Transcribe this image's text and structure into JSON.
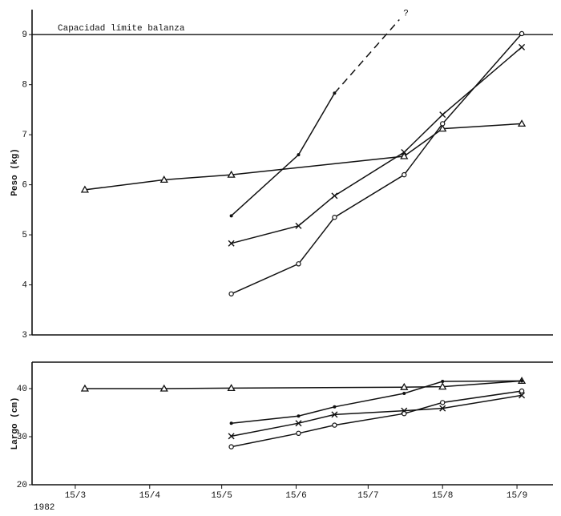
{
  "chart_data": [
    {
      "type": "line",
      "y_label": "Peso (kg)",
      "xlim": [
        "1982-02-25",
        "1982-09-30"
      ],
      "ylim": [
        3,
        9.5
      ],
      "yticks": [
        3,
        4,
        5,
        6,
        7,
        8,
        9
      ],
      "refline": {
        "value": 9,
        "label": "Capacidad límite balanza"
      },
      "series": [
        {
          "marker": "triangle",
          "color": "#111111",
          "x": [
            "1982-03-19",
            "1982-04-21",
            "1982-05-19",
            "1982-07-30",
            "1982-08-15",
            "1982-09-17"
          ],
          "values": [
            5.9,
            6.1,
            6.2,
            6.57,
            7.12,
            7.22
          ]
        },
        {
          "marker": "dot",
          "color": "#111111",
          "x": [
            "1982-05-19",
            "1982-06-16",
            "1982-07-01"
          ],
          "values": [
            5.38,
            6.6,
            7.83
          ]
        },
        {
          "marker": "none",
          "dash": true,
          "color": "#111111",
          "annotation": "?",
          "x": [
            "1982-07-01",
            "1982-07-28"
          ],
          "values": [
            7.83,
            9.3
          ]
        },
        {
          "marker": "cross",
          "color": "#111111",
          "x": [
            "1982-05-19",
            "1982-06-16",
            "1982-07-01",
            "1982-07-30",
            "1982-08-15",
            "1982-09-17"
          ],
          "values": [
            4.83,
            5.18,
            5.78,
            6.65,
            7.4,
            8.75
          ]
        },
        {
          "marker": "circle",
          "color": "#111111",
          "x": [
            "1982-05-19",
            "1982-06-16",
            "1982-07-01",
            "1982-07-30",
            "1982-08-15",
            "1982-09-17"
          ],
          "values": [
            3.82,
            4.42,
            5.35,
            6.2,
            7.22,
            9.02
          ]
        }
      ]
    },
    {
      "type": "line",
      "y_label": "Largo (cm)",
      "year_label": "1982",
      "xlim": [
        "1982-02-25",
        "1982-09-30"
      ],
      "ylim": [
        20,
        45.5
      ],
      "yticks": [
        20,
        30,
        40
      ],
      "xticks": [
        {
          "value": "1982-03-15",
          "label": "15/3"
        },
        {
          "value": "1982-04-15",
          "label": "15/4"
        },
        {
          "value": "1982-05-15",
          "label": "15/5"
        },
        {
          "value": "1982-06-15",
          "label": "15/6"
        },
        {
          "value": "1982-07-15",
          "label": "15/7"
        },
        {
          "value": "1982-08-15",
          "label": "15/8"
        },
        {
          "value": "1982-09-15",
          "label": "15/9"
        }
      ],
      "series": [
        {
          "marker": "triangle",
          "color": "#111111",
          "x": [
            "1982-03-19",
            "1982-04-21",
            "1982-05-19",
            "1982-07-30",
            "1982-08-15",
            "1982-09-17"
          ],
          "values": [
            40,
            40,
            40.1,
            40.3,
            40.4,
            41.6
          ]
        },
        {
          "marker": "dot",
          "color": "#111111",
          "x": [
            "1982-05-19",
            "1982-06-16",
            "1982-07-01",
            "1982-07-30",
            "1982-08-15",
            "1982-09-17"
          ],
          "values": [
            32.8,
            34.3,
            36.2,
            39,
            41.5,
            41.6
          ]
        },
        {
          "marker": "cross",
          "color": "#111111",
          "x": [
            "1982-05-19",
            "1982-06-16",
            "1982-07-01",
            "1982-07-30",
            "1982-08-15",
            "1982-09-17"
          ],
          "values": [
            30.1,
            32.8,
            34.6,
            35.4,
            35.9,
            38.6
          ]
        },
        {
          "marker": "circle",
          "color": "#111111",
          "x": [
            "1982-05-19",
            "1982-06-16",
            "1982-07-01",
            "1982-07-30",
            "1982-08-15",
            "1982-09-17"
          ],
          "values": [
            27.9,
            30.7,
            32.4,
            34.8,
            37.1,
            39.5
          ]
        }
      ]
    }
  ]
}
